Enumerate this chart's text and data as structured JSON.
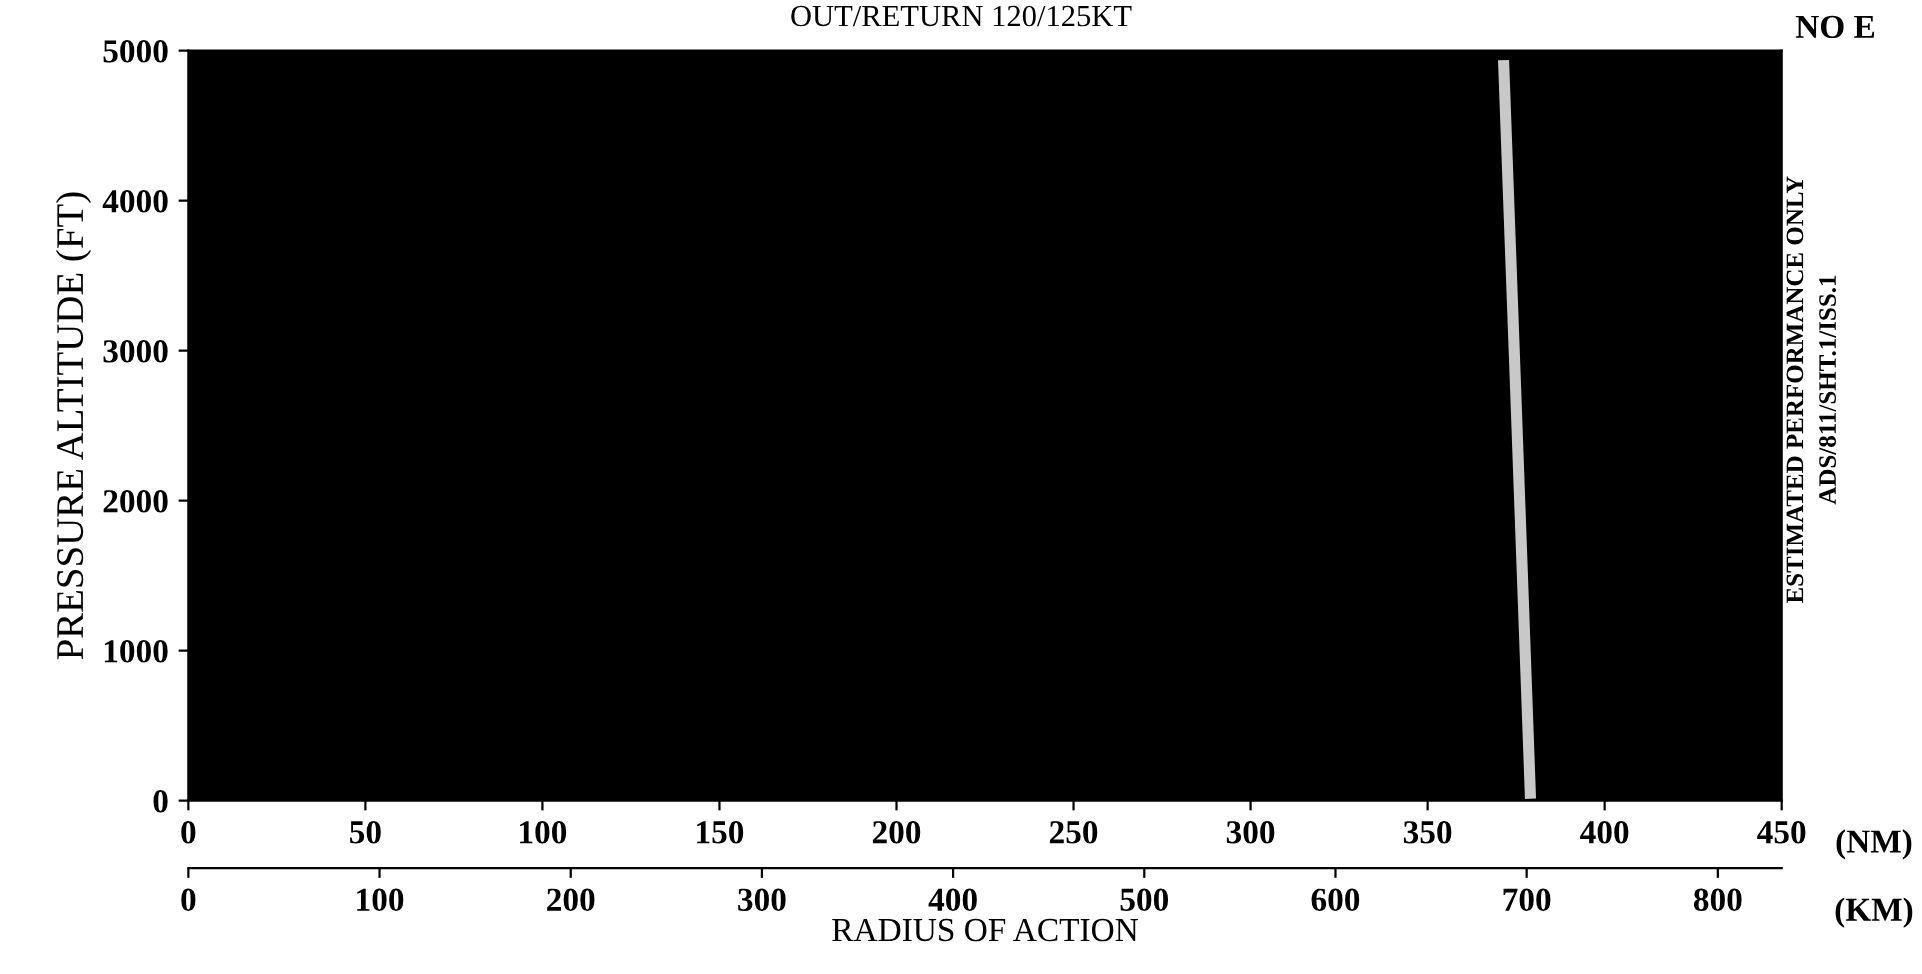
{
  "chart_data": {
    "type": "line",
    "title": "OUT/RETURN 120/125KT",
    "xlabel": "RADIUS OF ACTION",
    "ylabel": "PRESSURE ALTITUDE (FT)",
    "series": [
      {
        "color": "#c8c8c8",
        "x": [
          371.5,
          375,
          379
        ],
        "values": [
          4900,
          2650,
          50
        ]
      }
    ],
    "xlim": [
      0,
      450
    ],
    "xticks": [
      0,
      50,
      100,
      150,
      200,
      250,
      300,
      350,
      400,
      450
    ],
    "x2lim": [
      0,
      833.4
    ],
    "x2ticks": [
      0,
      100,
      200,
      300,
      400,
      500,
      600,
      700,
      800
    ],
    "ylim": [
      0,
      5000
    ],
    "yticks": [
      0,
      1000,
      2000,
      3000,
      4000,
      5000
    ],
    "annotations": [
      "NO E",
      "(NM)",
      "(KM)",
      "ESTIMATED PERFORMANCE ONLY",
      "ADS/811/SHT.1/ISS.1"
    ],
    "grid": false,
    "legend": false,
    "marker": "none",
    "line_style": "solid"
  }
}
